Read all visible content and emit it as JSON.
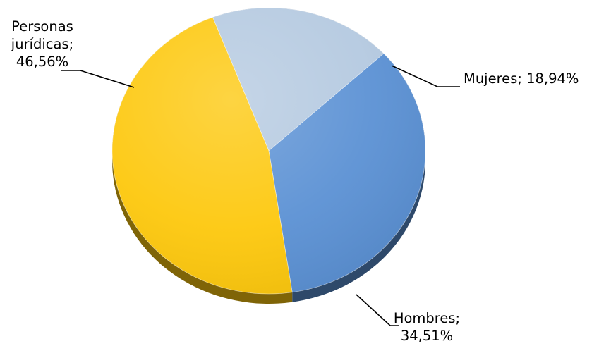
{
  "chart_data": {
    "type": "pie",
    "title": "",
    "legend": "none",
    "labels_outside": true,
    "slices": [
      {
        "name": "Mujeres",
        "value": 18.94,
        "label_lines": [
          "Mujeres; 18,94%"
        ],
        "color": "#b4c9e0"
      },
      {
        "name": "Hombres",
        "value": 34.51,
        "label_lines": [
          "Hombres;",
          "34,51%"
        ],
        "color": "#5b91d4"
      },
      {
        "name": "Personas jurídicas",
        "value": 46.56,
        "label_lines": [
          "Personas",
          "jurídicas;",
          "46,56%"
        ],
        "color": "#fdc80d"
      }
    ]
  }
}
